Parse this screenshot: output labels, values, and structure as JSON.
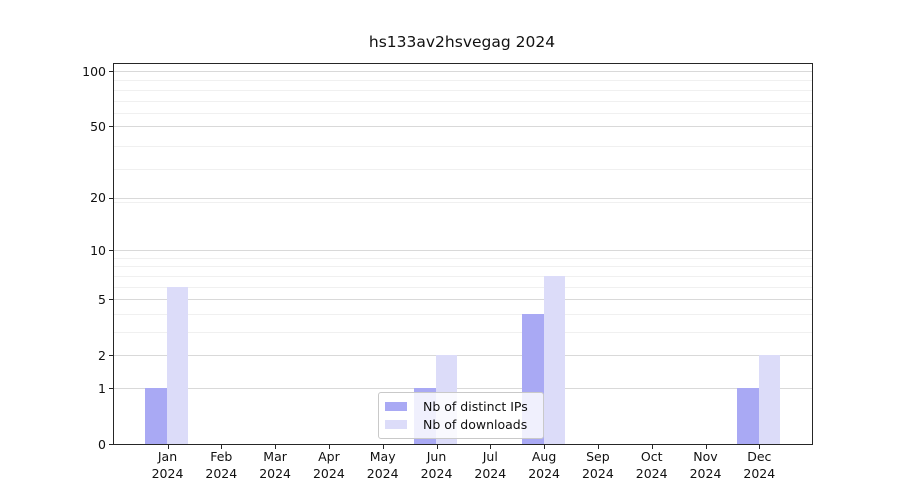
{
  "chart_data": {
    "type": "bar",
    "title": "hs133av2hsvegag 2024",
    "x_categories": [
      {
        "month": "Jan",
        "year": "2024"
      },
      {
        "month": "Feb",
        "year": "2024"
      },
      {
        "month": "Mar",
        "year": "2024"
      },
      {
        "month": "Apr",
        "year": "2024"
      },
      {
        "month": "May",
        "year": "2024"
      },
      {
        "month": "Jun",
        "year": "2024"
      },
      {
        "month": "Jul",
        "year": "2024"
      },
      {
        "month": "Aug",
        "year": "2024"
      },
      {
        "month": "Sep",
        "year": "2024"
      },
      {
        "month": "Oct",
        "year": "2024"
      },
      {
        "month": "Nov",
        "year": "2024"
      },
      {
        "month": "Dec",
        "year": "2024"
      }
    ],
    "series": [
      {
        "name": "Nb of distinct IPs",
        "color": "#a9a9f4",
        "values": [
          1,
          0,
          0,
          0,
          0,
          1,
          0,
          4,
          0,
          0,
          0,
          1
        ]
      },
      {
        "name": "Nb of downloads",
        "color": "#dcdcf9",
        "values": [
          6,
          0,
          0,
          0,
          0,
          2,
          0,
          7,
          0,
          0,
          0,
          2
        ]
      }
    ],
    "xlabel": "",
    "ylabel": "",
    "yscale": "log(1+y)",
    "ylim": [
      0,
      110
    ],
    "yticks": [
      0,
      1,
      2,
      5,
      10,
      20,
      50,
      100
    ],
    "minor_gridlines": [
      3,
      4,
      6,
      7,
      8,
      9,
      19,
      29,
      39,
      59,
      69,
      79,
      89
    ],
    "grid": true,
    "legend_position": "lower center"
  },
  "colors": {
    "background": "#ffffff",
    "bar_distinct_ips": "#a9a9f4",
    "bar_downloads": "#dcdcf9",
    "grid_major": "#d9d9d9",
    "grid_minor": "#f0f0f0",
    "axis": "#262626",
    "text": "#111111",
    "legend_border": "#c9c9c9"
  }
}
